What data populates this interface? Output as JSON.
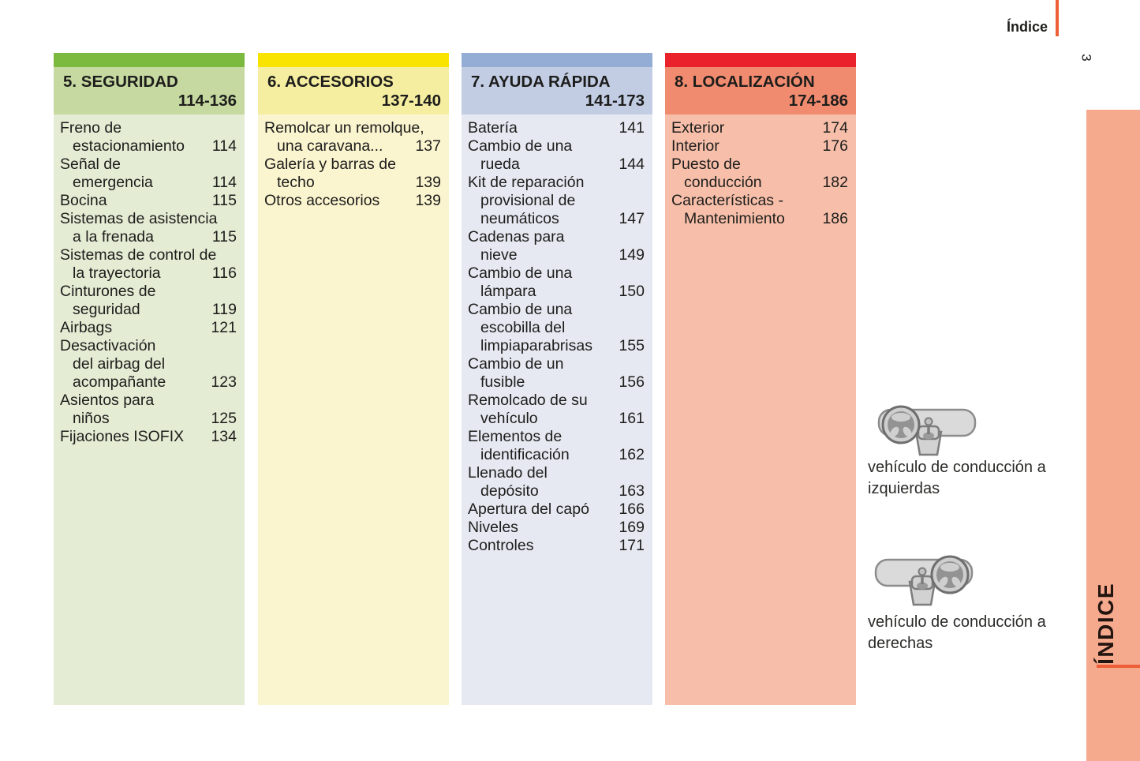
{
  "page": {
    "top_label": "Índice",
    "page_number": "3",
    "sidebar_label": "ÍNDICE"
  },
  "colors": {
    "accent_line": "#ee5f38",
    "sidebar_bg": "#f5a98d",
    "text": "#1d1d1b"
  },
  "sections": [
    {
      "title": "5. SEGURIDAD",
      "range": "114-136",
      "colors": {
        "bar": "#7cb93f",
        "head": "#c6d9a1",
        "body": "#e4ecd4"
      },
      "items": [
        {
          "lines": [
            "Freno de",
            "estacionamiento"
          ],
          "page": "114"
        },
        {
          "lines": [
            "Señal de",
            "emergencia"
          ],
          "page": "114"
        },
        {
          "lines": [
            "Bocina"
          ],
          "page": "115"
        },
        {
          "lines": [
            "Sistemas de asistencia",
            "a la frenada"
          ],
          "page": "115"
        },
        {
          "lines": [
            "Sistemas de control de",
            "la trayectoria"
          ],
          "page": "116"
        },
        {
          "lines": [
            "Cinturones de",
            "seguridad"
          ],
          "page": "119"
        },
        {
          "lines": [
            "Airbags"
          ],
          "page": "121"
        },
        {
          "lines": [
            "Desactivación",
            "del airbag del",
            "acompañante"
          ],
          "page": "123"
        },
        {
          "lines": [
            "Asientos para",
            "niños"
          ],
          "page": "125"
        },
        {
          "lines": [
            "Fijaciones ISOFIX"
          ],
          "page": "134"
        }
      ]
    },
    {
      "title": "6. ACCESORIOS",
      "range": "137-140",
      "colors": {
        "bar": "#f9e400",
        "head": "#f5eda0",
        "body": "#faf4cf"
      },
      "items": [
        {
          "lines": [
            "Remolcar un remolque,",
            "una caravana..."
          ],
          "page": "137"
        },
        {
          "lines": [
            "Galería y barras de",
            "techo"
          ],
          "page": "139"
        },
        {
          "lines": [
            "Otros accesorios"
          ],
          "page": "139"
        }
      ]
    },
    {
      "title": "7. AYUDA RÁPIDA",
      "range": "141-173",
      "colors": {
        "bar": "#93add5",
        "head": "#c2cde4",
        "body": "#e6e9f2"
      },
      "items": [
        {
          "lines": [
            "Batería"
          ],
          "page": "141"
        },
        {
          "lines": [
            "Cambio de una",
            "rueda"
          ],
          "page": "144"
        },
        {
          "lines": [
            "Kit de reparación",
            "provisional de",
            "neumáticos"
          ],
          "page": "147"
        },
        {
          "lines": [
            "Cadenas para",
            "nieve"
          ],
          "page": "149"
        },
        {
          "lines": [
            "Cambio de una",
            "lámpara"
          ],
          "page": "150"
        },
        {
          "lines": [
            "Cambio de una",
            "escobilla del",
            "limpiaparabrisas"
          ],
          "page": "155"
        },
        {
          "lines": [
            "Cambio de un",
            "fusible"
          ],
          "page": "156"
        },
        {
          "lines": [
            "Remolcado de su",
            "vehículo"
          ],
          "page": "161"
        },
        {
          "lines": [
            "Elementos de",
            "identificación"
          ],
          "page": "162"
        },
        {
          "lines": [
            "Llenado del",
            "depósito"
          ],
          "page": "163"
        },
        {
          "lines": [
            "Apertura del capó"
          ],
          "page": "166"
        },
        {
          "lines": [
            "Niveles"
          ],
          "page": "169"
        },
        {
          "lines": [
            "Controles"
          ],
          "page": "171"
        }
      ]
    },
    {
      "title": "8. LOCALIZACIÓN",
      "range": "174-186",
      "colors": {
        "bar": "#e9222b",
        "head": "#f08b6f",
        "body": "#f7bfaa"
      },
      "items": [
        {
          "lines": [
            "Exterior"
          ],
          "page": "174"
        },
        {
          "lines": [
            "Interior"
          ],
          "page": "176"
        },
        {
          "lines": [
            "Puesto de",
            "conducción"
          ],
          "page": "182"
        },
        {
          "lines": [
            "Características -",
            "Mantenimiento"
          ],
          "page": "186"
        }
      ]
    }
  ],
  "illustrations": [
    {
      "icon": "left-hand-drive-dashboard-icon",
      "caption": "vehículo de conducción a izquierdas"
    },
    {
      "icon": "right-hand-drive-dashboard-icon",
      "caption": "vehículo de conducción a derechas"
    }
  ]
}
